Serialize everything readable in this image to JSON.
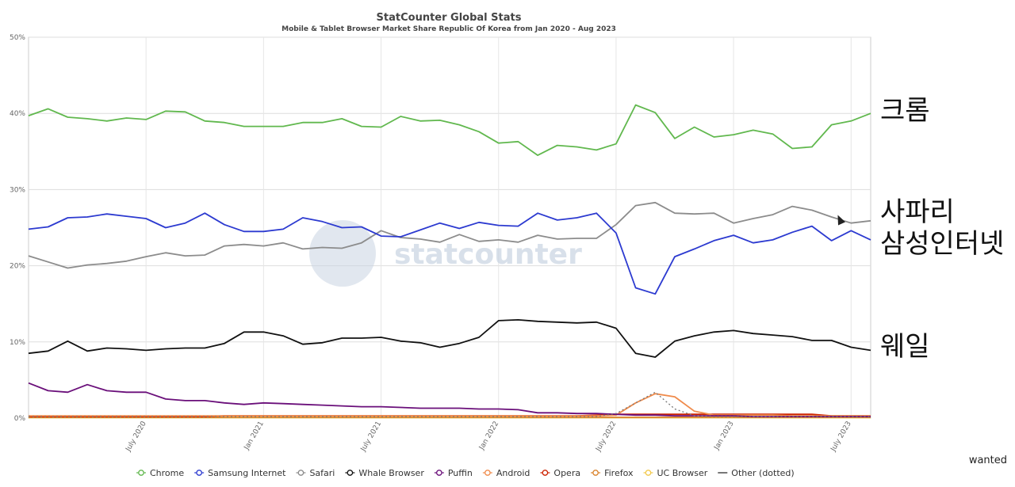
{
  "colors": {
    "chrome": "#61b84e",
    "samsung": "#2c3ad0",
    "safari": "#8c8c8c",
    "whale": "#111111",
    "puffin": "#6a0f7a",
    "android": "#f08b4b",
    "opera": "#cc2200",
    "firefox": "#d9822b",
    "uc": "#f2c94c",
    "other": "#777777",
    "watermark": "#c8d4e2"
  },
  "watermark": "statcounter",
  "annotations": {
    "chrome": "크롬",
    "safari": "사파리",
    "samsung": "삼성인터넷",
    "whale": "웨일"
  },
  "footer": {
    "brand": "wanted"
  },
  "chart_data": {
    "type": "line",
    "title": "StatCounter Global Stats",
    "subtitle": "Mobile & Tablet Browser Market Share Republic Of Korea from Jan 2020 - Aug 2023",
    "ylim": [
      0,
      50
    ],
    "yticks": [
      "0%",
      "10%",
      "20%",
      "30%",
      "40%",
      "50%"
    ],
    "ytick_values": [
      0,
      10,
      20,
      30,
      40,
      50
    ],
    "x_count": 44,
    "xticks": [
      {
        "index": 6,
        "label": "July 2020"
      },
      {
        "index": 12,
        "label": "Jan 2021"
      },
      {
        "index": 18,
        "label": "July 2021"
      },
      {
        "index": 24,
        "label": "Jan 2022"
      },
      {
        "index": 30,
        "label": "July 2022"
      },
      {
        "index": 36,
        "label": "Jan 2023"
      },
      {
        "index": 42,
        "label": "July 2023"
      }
    ],
    "series": [
      {
        "name": "Chrome",
        "key": "chrome",
        "values": [
          39.7,
          40.6,
          39.5,
          39.3,
          39.0,
          39.4,
          39.2,
          40.3,
          40.2,
          39.0,
          38.8,
          38.3,
          38.3,
          38.3,
          38.8,
          38.8,
          39.3,
          38.3,
          38.2,
          39.6,
          39.0,
          39.1,
          38.5,
          37.6,
          36.1,
          36.3,
          34.5,
          35.8,
          35.6,
          35.2,
          36.0,
          41.1,
          40.1,
          36.7,
          38.2,
          36.9,
          37.2,
          37.8,
          37.3,
          35.4,
          35.6,
          38.5,
          39.0,
          40.0
        ]
      },
      {
        "name": "Samsung Internet",
        "key": "samsung",
        "values": [
          24.8,
          25.1,
          26.3,
          26.4,
          26.8,
          26.5,
          26.2,
          25.0,
          25.6,
          26.9,
          25.4,
          24.5,
          24.5,
          24.8,
          26.3,
          25.8,
          25.0,
          25.1,
          23.9,
          23.8,
          24.7,
          25.6,
          24.9,
          25.7,
          25.3,
          25.2,
          26.9,
          26.0,
          26.3,
          26.9,
          24.3,
          17.1,
          16.3,
          21.2,
          22.2,
          23.3,
          24.0,
          23.0,
          23.4,
          24.4,
          25.2,
          23.3,
          24.6,
          23.4
        ]
      },
      {
        "name": "Safari",
        "key": "safari",
        "values": [
          21.3,
          20.5,
          19.7,
          20.1,
          20.3,
          20.6,
          21.2,
          21.7,
          21.3,
          21.4,
          22.6,
          22.8,
          22.6,
          23.0,
          22.2,
          22.4,
          22.3,
          23.0,
          24.6,
          23.7,
          23.5,
          23.1,
          24.1,
          23.2,
          23.4,
          23.1,
          24.0,
          23.5,
          23.6,
          23.6,
          25.4,
          27.9,
          28.3,
          26.9,
          26.8,
          26.9,
          25.6,
          26.2,
          26.7,
          27.8,
          27.3,
          26.4,
          25.6,
          25.9
        ]
      },
      {
        "name": "Whale Browser",
        "key": "whale",
        "values": [
          8.5,
          8.8,
          10.1,
          8.8,
          9.2,
          9.1,
          8.9,
          9.1,
          9.2,
          9.2,
          9.8,
          11.3,
          11.3,
          10.8,
          9.7,
          9.9,
          10.5,
          10.5,
          10.6,
          10.1,
          9.9,
          9.3,
          9.8,
          10.6,
          12.8,
          12.9,
          12.7,
          12.6,
          12.5,
          12.6,
          11.8,
          8.5,
          8.0,
          10.1,
          10.8,
          11.3,
          11.5,
          11.1,
          10.9,
          10.7,
          10.2,
          10.2,
          9.3,
          8.9
        ]
      },
      {
        "name": "Puffin",
        "key": "puffin",
        "values": [
          4.6,
          3.6,
          3.4,
          4.4,
          3.6,
          3.4,
          3.4,
          2.5,
          2.3,
          2.3,
          2.0,
          1.8,
          2.0,
          1.9,
          1.8,
          1.7,
          1.6,
          1.5,
          1.5,
          1.4,
          1.3,
          1.3,
          1.3,
          1.2,
          1.2,
          1.1,
          0.7,
          0.7,
          0.6,
          0.6,
          0.5,
          0.4,
          0.4,
          0.3,
          0.3,
          0.3,
          0.3,
          0.2,
          0.2,
          0.2,
          0.2,
          0.2,
          0.2,
          0.2
        ]
      },
      {
        "name": "Android",
        "key": "android",
        "values": [
          0.3,
          0.3,
          0.3,
          0.3,
          0.3,
          0.3,
          0.3,
          0.3,
          0.3,
          0.3,
          0.3,
          0.3,
          0.3,
          0.3,
          0.3,
          0.3,
          0.3,
          0.3,
          0.3,
          0.3,
          0.3,
          0.3,
          0.3,
          0.3,
          0.3,
          0.3,
          0.3,
          0.3,
          0.3,
          0.3,
          0.4,
          2.0,
          3.2,
          2.8,
          0.9,
          0.4,
          0.4,
          0.4,
          0.4,
          0.3,
          0.3,
          0.3,
          0.3,
          0.3
        ]
      },
      {
        "name": "Opera",
        "key": "opera",
        "values": [
          0.2,
          0.2,
          0.2,
          0.2,
          0.2,
          0.2,
          0.2,
          0.2,
          0.2,
          0.2,
          0.3,
          0.3,
          0.3,
          0.3,
          0.3,
          0.3,
          0.3,
          0.3,
          0.3,
          0.3,
          0.3,
          0.3,
          0.3,
          0.3,
          0.3,
          0.3,
          0.3,
          0.3,
          0.3,
          0.4,
          0.5,
          0.5,
          0.5,
          0.5,
          0.5,
          0.5,
          0.5,
          0.5,
          0.5,
          0.5,
          0.5,
          0.3,
          0.3,
          0.3
        ]
      },
      {
        "name": "Firefox",
        "key": "firefox",
        "values": [
          0.1,
          0.1,
          0.1,
          0.1,
          0.1,
          0.1,
          0.1,
          0.1,
          0.1,
          0.1,
          0.1,
          0.1,
          0.1,
          0.1,
          0.1,
          0.1,
          0.1,
          0.1,
          0.1,
          0.1,
          0.1,
          0.1,
          0.1,
          0.1,
          0.1,
          0.1,
          0.1,
          0.1,
          0.1,
          0.1,
          0.1,
          0.1,
          0.1,
          0.1,
          0.1,
          0.1,
          0.1,
          0.1,
          0.1,
          0.1,
          0.1,
          0.1,
          0.1,
          0.1
        ]
      },
      {
        "name": "UC Browser",
        "key": "uc",
        "values": [
          0.05,
          0.05,
          0.05,
          0.05,
          0.05,
          0.05,
          0.05,
          0.05,
          0.05,
          0.05,
          0.05,
          0.05,
          0.05,
          0.05,
          0.05,
          0.05,
          0.05,
          0.05,
          0.05,
          0.05,
          0.05,
          0.05,
          0.05,
          0.05,
          0.05,
          0.05,
          0.05,
          0.05,
          0.05,
          0.05,
          0.05,
          0.05,
          0.05,
          0.05,
          0.05,
          0.05,
          0.05,
          0.05,
          0.05,
          0.05,
          0.05,
          0.05,
          0.05,
          0.05
        ]
      },
      {
        "name": "Other (dotted)",
        "key": "other",
        "dotted": true,
        "values": [
          0.2,
          0.2,
          0.2,
          0.2,
          0.2,
          0.2,
          0.2,
          0.2,
          0.2,
          0.2,
          0.2,
          0.2,
          0.2,
          0.2,
          0.2,
          0.2,
          0.2,
          0.2,
          0.2,
          0.2,
          0.2,
          0.2,
          0.2,
          0.2,
          0.2,
          0.2,
          0.2,
          0.2,
          0.2,
          0.2,
          0.6,
          2.0,
          3.4,
          1.2,
          0.3,
          0.2,
          0.2,
          0.2,
          0.2,
          0.2,
          0.2,
          0.2,
          0.2,
          0.2
        ]
      }
    ],
    "legend_position": "bottom",
    "grid": true
  }
}
